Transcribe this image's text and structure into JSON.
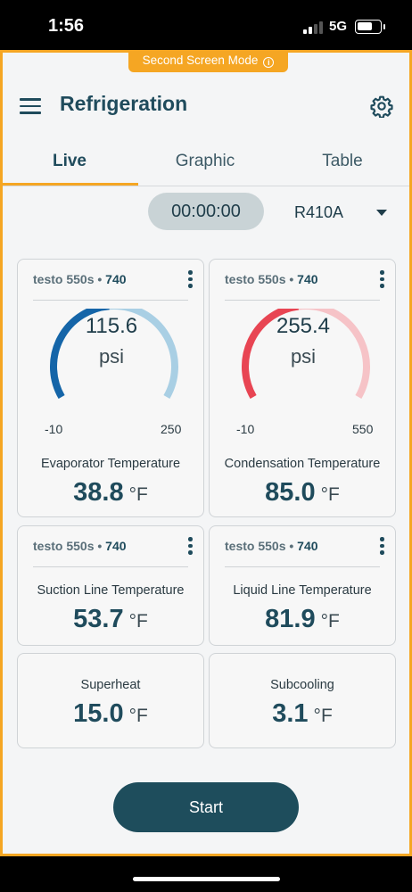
{
  "status_bar": {
    "time": "1:56",
    "network": "5G",
    "signal_bars": 2,
    "signal_total": 4
  },
  "app": {
    "mode_banner": "Second Screen Mode",
    "title": "Refrigeration",
    "tabs": [
      {
        "label": "Live",
        "active": true
      },
      {
        "label": "Graphic",
        "active": false
      },
      {
        "label": "Table",
        "active": false
      }
    ],
    "timer": "00:00:00",
    "refrigerant": "R410A",
    "cards": [
      {
        "device": "testo 550s",
        "separator": " • ",
        "device_id": "740",
        "gauge": {
          "value": "115.6",
          "unit": "psi",
          "min": "-10",
          "max": "250",
          "fraction": 0.48,
          "color": "#1565a8",
          "track": "#a9cfe4"
        },
        "label": "Evaporator Temperature",
        "reading": "38.8",
        "unit": "°F"
      },
      {
        "device": "testo 550s",
        "separator": " • ",
        "device_id": "740",
        "gauge": {
          "value": "255.4",
          "unit": "psi",
          "min": "-10",
          "max": "550",
          "fraction": 0.47,
          "color": "#e84553",
          "track": "#f6c3c7"
        },
        "label": "Condensation Temperature",
        "reading": "85.0",
        "unit": "°F"
      },
      {
        "device": "testo 550s",
        "separator": " • ",
        "device_id": "740",
        "label": "Suction Line Temperature",
        "reading": "53.7",
        "unit": "°F"
      },
      {
        "device": "testo 550s",
        "separator": " • ",
        "device_id": "740",
        "label": "Liquid Line Temperature",
        "reading": "81.9",
        "unit": "°F"
      },
      {
        "label": "Superheat",
        "reading": "15.0",
        "unit": "°F"
      },
      {
        "label": "Subcooling",
        "reading": "3.1",
        "unit": "°F"
      }
    ],
    "start_label": "Start"
  },
  "colors": {
    "accent": "#f5a623",
    "primary": "#1f4b5c",
    "button": "#1e4d5c"
  }
}
